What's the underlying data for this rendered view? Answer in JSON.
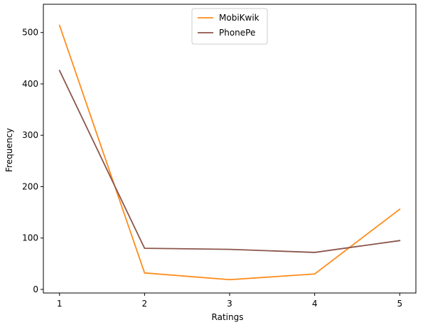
{
  "chart_data": {
    "type": "line",
    "x": [
      1,
      2,
      3,
      4,
      5
    ],
    "xticks": [
      "1",
      "2",
      "3",
      "4",
      "5"
    ],
    "yticks": [
      "0",
      "100",
      "200",
      "300",
      "400",
      "500"
    ],
    "xlabel": "Ratings",
    "ylabel": "Frequency",
    "xlim": [
      0.81,
      5.19
    ],
    "ylim": [
      -7,
      555
    ],
    "grid": false,
    "legend_position": "upper-center",
    "series": [
      {
        "name": "MobiKwik",
        "color": "#ff8c1a",
        "values": [
          514,
          32,
          19,
          30,
          156
        ]
      },
      {
        "name": "PhonePe",
        "color": "#8c564b",
        "values": [
          426,
          80,
          78,
          72,
          95
        ]
      }
    ]
  }
}
